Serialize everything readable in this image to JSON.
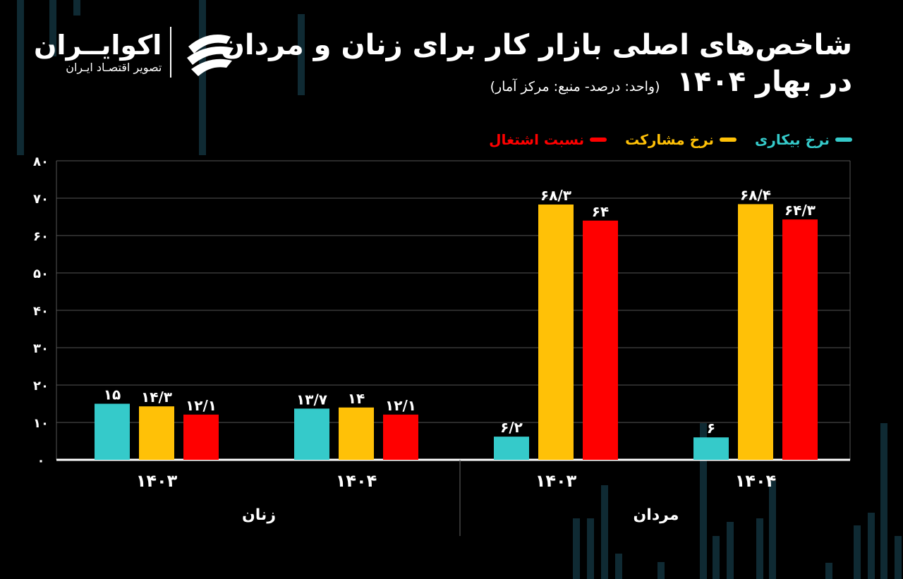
{
  "title": {
    "line1": "شاخص‌های اصلی بازار کار برای زنان و مردان",
    "line2": "در بهار ۱۴۰۴",
    "subtitle": "(واحد: درصد- منبع: مرکز آمار)"
  },
  "logo": {
    "name": "اکوایــران",
    "tagline": "تصویر اقتصـاد ایـران"
  },
  "colors": {
    "background": "#000000",
    "unemployment": "#35CACA",
    "participation": "#FFC107",
    "employment": "#FF0000",
    "grid": "#555555",
    "axis": "#ffffff"
  },
  "chart_data": {
    "type": "bar",
    "ylim": [
      0,
      80
    ],
    "yticks": [
      "۰",
      "۱۰",
      "۲۰",
      "۳۰",
      "۴۰",
      "۵۰",
      "۶۰",
      "۷۰",
      "۸۰"
    ],
    "grid": true,
    "legend_position": "top-right",
    "series": [
      {
        "name": "نرخ بیکاری",
        "color": "#35CACA"
      },
      {
        "name": "نرخ مشارکت",
        "color": "#FFC107"
      },
      {
        "name": "نسبت اشتغال",
        "color": "#FF0000"
      }
    ],
    "groups": [
      {
        "name": "زنان",
        "categories": [
          {
            "label": "۱۴۰۳",
            "values": [
              15,
              14.3,
              12.1
            ],
            "labels": [
              "۱۵",
              "۱۴/۳",
              "۱۲/۱"
            ]
          },
          {
            "label": "۱۴۰۴",
            "values": [
              13.7,
              14,
              12.1
            ],
            "labels": [
              "۱۳/۷",
              "۱۴",
              "۱۲/۱"
            ]
          }
        ]
      },
      {
        "name": "مردان",
        "categories": [
          {
            "label": "۱۴۰۳",
            "values": [
              6.2,
              68.3,
              64
            ],
            "labels": [
              "۶/۲",
              "۶۸/۳",
              "۶۴"
            ]
          },
          {
            "label": "۱۴۰۴",
            "values": [
              6,
              68.4,
              64.3
            ],
            "labels": [
              "۶",
              "۶۸/۴",
              "۶۴/۳"
            ]
          }
        ]
      }
    ]
  }
}
